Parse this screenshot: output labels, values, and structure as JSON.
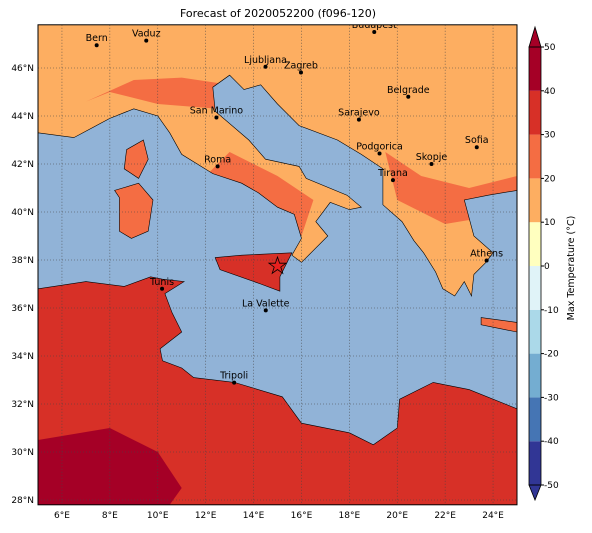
{
  "map": {
    "title": "Forecast of 2020052200 (f096-120)",
    "xlim": [
      5,
      25
    ],
    "ylim": [
      27.8,
      47.8
    ],
    "xticks": [
      {
        "value": 6,
        "label": "6°E"
      },
      {
        "value": 8,
        "label": "8°E"
      },
      {
        "value": 10,
        "label": "10°E"
      },
      {
        "value": 12,
        "label": "12°E"
      },
      {
        "value": 14,
        "label": "14°E"
      },
      {
        "value": 16,
        "label": "16°E"
      },
      {
        "value": 18,
        "label": "18°E"
      },
      {
        "value": 20,
        "label": "20°E"
      },
      {
        "value": 22,
        "label": "22°E"
      },
      {
        "value": 24,
        "label": "24°E"
      }
    ],
    "yticks": [
      {
        "value": 28,
        "label": "28°N"
      },
      {
        "value": 30,
        "label": "30°N"
      },
      {
        "value": 32,
        "label": "32°N"
      },
      {
        "value": 34,
        "label": "34°N"
      },
      {
        "value": 36,
        "label": "36°N"
      },
      {
        "value": 38,
        "label": "38°N"
      },
      {
        "value": 40,
        "label": "40°N"
      },
      {
        "value": 42,
        "label": "42°N"
      },
      {
        "value": 44,
        "label": "44°N"
      },
      {
        "value": 46,
        "label": "46°N"
      }
    ],
    "grid": true,
    "sea_color": "#91b3d7",
    "cities": [
      "Bern",
      "Vaduz",
      "Budapest",
      "Ljubljana",
      "Zagreb",
      "Belgrade",
      "Sarajevo",
      "San Marino",
      "Roma",
      "Podgorica",
      "Skopje",
      "Sofia",
      "Tirana",
      "Athens",
      "Tunis",
      "La Valette",
      "Tripoli"
    ],
    "colorbar": {
      "label": "Max Temperature (°C)",
      "lim": [
        -50,
        50
      ],
      "ticks": [
        -50,
        -40,
        -30,
        -20,
        -10,
        0,
        10,
        20,
        30,
        40,
        50
      ],
      "colors": [
        "#313695",
        "#4575b4",
        "#74add1",
        "#abd9e9",
        "#e0f3f8",
        "#ffffbf",
        "#fdae61",
        "#f46d43",
        "#d73027",
        "#a50026"
      ]
    }
  }
}
